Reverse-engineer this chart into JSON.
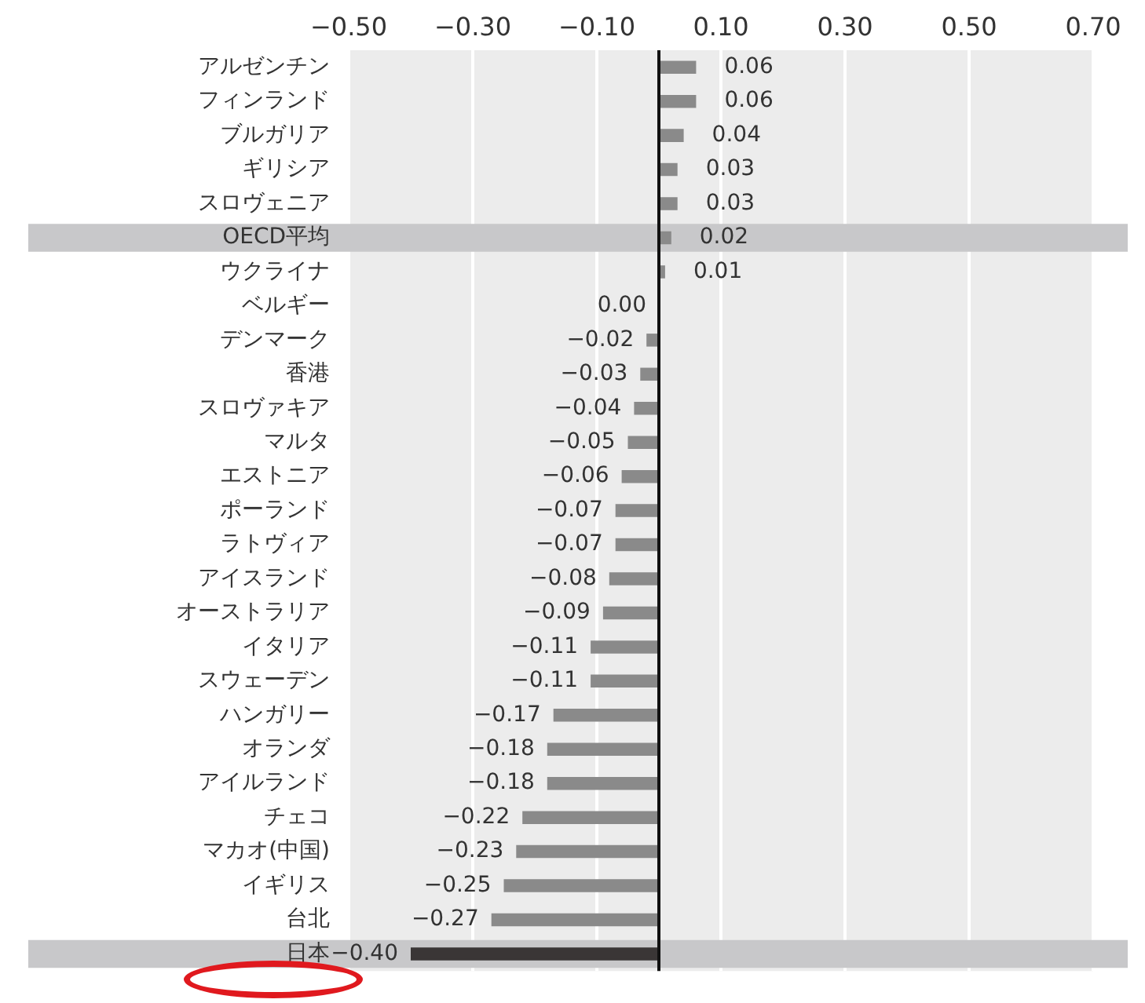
{
  "chart_data": {
    "type": "bar",
    "orientation": "horizontal",
    "categories": [
      "アルゼンチン",
      "フィンランド",
      "ブルガリア",
      "ギリシア",
      "スロヴェニア",
      "OECD平均",
      "ウクライナ",
      "ベルギー",
      "デンマーク",
      "香港",
      "スロヴァキア",
      "マルタ",
      "エストニア",
      "ポーランド",
      "ラトヴィア",
      "アイスランド",
      "オーストラリア",
      "イタリア",
      "スウェーデン",
      "ハンガリー",
      "オランダ",
      "アイルランド",
      "チェコ",
      "マカオ(中国)",
      "イギリス",
      "台北",
      "日本"
    ],
    "values": [
      0.06,
      0.06,
      0.04,
      0.03,
      0.03,
      0.02,
      0.01,
      0.0,
      -0.02,
      -0.03,
      -0.04,
      -0.05,
      -0.06,
      -0.07,
      -0.07,
      -0.08,
      -0.09,
      -0.11,
      -0.11,
      -0.17,
      -0.18,
      -0.18,
      -0.22,
      -0.23,
      -0.25,
      -0.27,
      -0.4
    ],
    "value_labels": [
      "0.06",
      "0.06",
      "0.04",
      "0.03",
      "0.03",
      "0.02",
      "0.01",
      "0.00",
      "−0.02",
      "−0.03",
      "−0.04",
      "−0.05",
      "−0.06",
      "−0.07",
      "−0.07",
      "−0.08",
      "−0.09",
      "−0.11",
      "−0.11",
      "−0.17",
      "−0.18",
      "−0.18",
      "−0.22",
      "−0.23",
      "−0.25",
      "−0.27",
      "−0.40"
    ],
    "colors": [
      "#8a8a8a",
      "#8a8a8a",
      "#8a8a8a",
      "#8a8a8a",
      "#8a8a8a",
      "#8a8a8a",
      "#8a8a8a",
      "#8a8a8a",
      "#8a8a8a",
      "#8a8a8a",
      "#8a8a8a",
      "#8a8a8a",
      "#8a8a8a",
      "#8a8a8a",
      "#8a8a8a",
      "#8a8a8a",
      "#8a8a8a",
      "#8a8a8a",
      "#8a8a8a",
      "#8a8a8a",
      "#8a8a8a",
      "#8a8a8a",
      "#8a8a8a",
      "#8a8a8a",
      "#8a8a8a",
      "#8a8a8a",
      "#3a3636"
    ],
    "xlim": [
      -0.5,
      0.7
    ],
    "xticks": [
      {
        "value": -0.5,
        "label": "−0.50"
      },
      {
        "value": -0.3,
        "label": "−0.30"
      },
      {
        "value": -0.1,
        "label": "−0.10"
      },
      {
        "value": 0.1,
        "label": "0.10"
      },
      {
        "value": 0.3,
        "label": "0.30"
      },
      {
        "value": 0.5,
        "label": "0.50"
      },
      {
        "value": 0.7,
        "label": "0.70"
      }
    ],
    "bands": [
      {
        "axis": "y",
        "from": "OECD平均",
        "to": "OECD平均",
        "color": "#c8c8ca"
      },
      {
        "axis": "y",
        "from": "日本",
        "to": "日本",
        "color": "#c8c8ca"
      }
    ],
    "grid": "x",
    "legend": false
  }
}
